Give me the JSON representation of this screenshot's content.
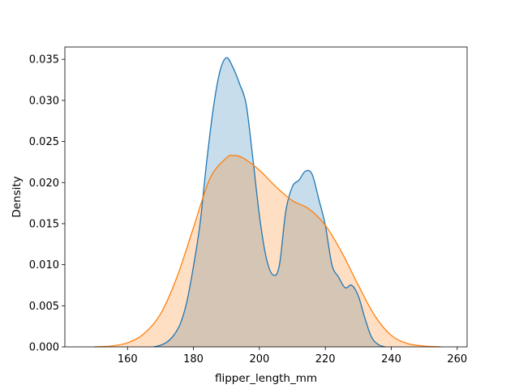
{
  "chart_data": {
    "type": "area",
    "title": "",
    "xlabel": "flipper_length_mm",
    "ylabel": "Density",
    "xlim": [
      141,
      263
    ],
    "ylim": [
      0,
      0.0365
    ],
    "xticks": [
      160,
      180,
      200,
      220,
      240,
      260
    ],
    "yticks": [
      0.0,
      0.005,
      0.01,
      0.015,
      0.02,
      0.025,
      0.03,
      0.035
    ],
    "ytick_labels": [
      "0.000",
      "0.005",
      "0.010",
      "0.015",
      "0.020",
      "0.025",
      "0.030",
      "0.035"
    ],
    "grid": false,
    "legend": "none",
    "series": [
      {
        "color": "#1f77b4",
        "fill_color": "#1f77b4",
        "fill_opacity": 0.25,
        "points": [
          [
            168,
            0.0
          ],
          [
            170,
            0.0002
          ],
          [
            172,
            0.0006
          ],
          [
            174,
            0.0014
          ],
          [
            176,
            0.0028
          ],
          [
            178,
            0.0055
          ],
          [
            180,
            0.0098
          ],
          [
            182,
            0.015
          ],
          [
            184,
            0.0225
          ],
          [
            186,
            0.029
          ],
          [
            188,
            0.0335
          ],
          [
            190,
            0.0352
          ],
          [
            192,
            0.034
          ],
          [
            194,
            0.032
          ],
          [
            196,
            0.0295
          ],
          [
            198,
            0.023
          ],
          [
            200,
            0.016
          ],
          [
            202,
            0.011
          ],
          [
            204,
            0.0088
          ],
          [
            206,
            0.0098
          ],
          [
            208,
            0.0165
          ],
          [
            210,
            0.0195
          ],
          [
            212,
            0.0203
          ],
          [
            214,
            0.0214
          ],
          [
            216,
            0.021
          ],
          [
            218,
            0.018
          ],
          [
            220,
            0.0148
          ],
          [
            222,
            0.01
          ],
          [
            224,
            0.0085
          ],
          [
            226,
            0.0072
          ],
          [
            228,
            0.0075
          ],
          [
            230,
            0.0062
          ],
          [
            232,
            0.0035
          ],
          [
            234,
            0.0012
          ],
          [
            236,
            0.0003
          ],
          [
            238,
            0.0
          ]
        ]
      },
      {
        "color": "#ff7f0e",
        "fill_color": "#ff7f0e",
        "fill_opacity": 0.25,
        "points": [
          [
            150,
            0.0
          ],
          [
            155,
            0.0001
          ],
          [
            160,
            0.0005
          ],
          [
            165,
            0.0016
          ],
          [
            170,
            0.004
          ],
          [
            175,
            0.0085
          ],
          [
            180,
            0.0145
          ],
          [
            185,
            0.0205
          ],
          [
            190,
            0.023
          ],
          [
            192,
            0.0233
          ],
          [
            195,
            0.023
          ],
          [
            200,
            0.0215
          ],
          [
            205,
            0.0195
          ],
          [
            210,
            0.0178
          ],
          [
            215,
            0.0168
          ],
          [
            220,
            0.0148
          ],
          [
            225,
            0.0115
          ],
          [
            230,
            0.0075
          ],
          [
            235,
            0.0038
          ],
          [
            240,
            0.0014
          ],
          [
            245,
            0.0004
          ],
          [
            250,
            0.0001
          ],
          [
            255,
            0.0
          ]
        ]
      }
    ]
  }
}
